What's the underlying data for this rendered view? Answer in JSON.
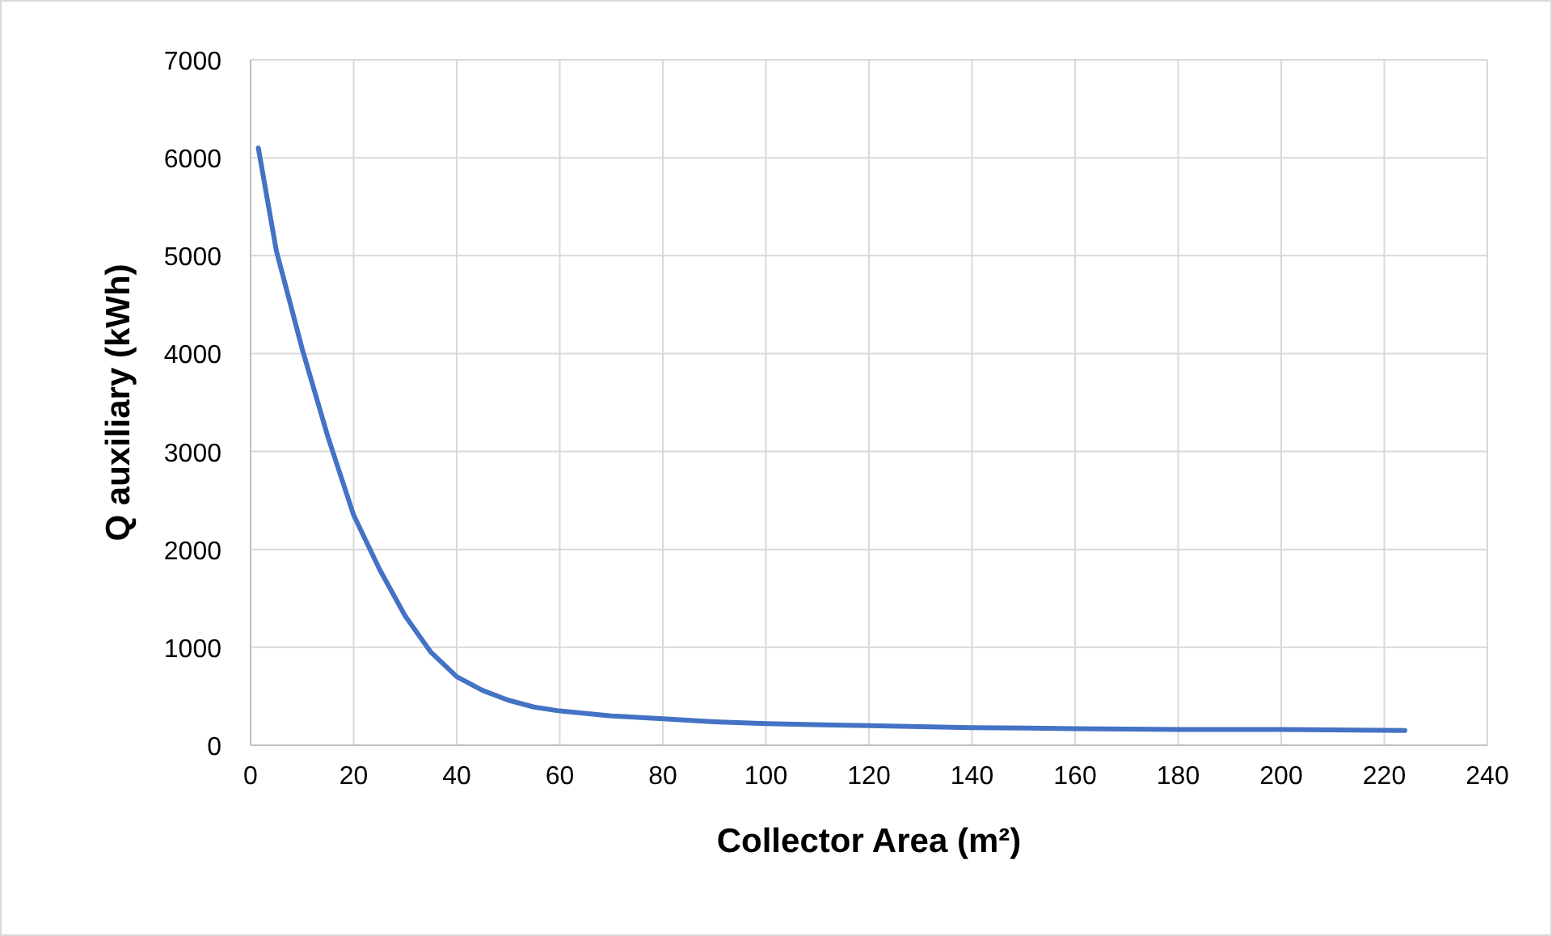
{
  "chart_data": {
    "type": "line",
    "xlabel": "Collector Area (m²)",
    "ylabel": "Q auxiliary (kWh)",
    "series": [
      {
        "color": "#4472c4",
        "x": [
          1.5,
          5,
          10,
          15,
          20,
          25,
          30,
          35,
          40,
          45,
          50,
          55,
          60,
          70,
          80,
          90,
          100,
          120,
          140,
          160,
          180,
          200,
          224
        ],
        "values": [
          6100,
          5050,
          4050,
          3150,
          2350,
          1800,
          1320,
          950,
          700,
          560,
          460,
          390,
          350,
          300,
          270,
          240,
          220,
          200,
          180,
          170,
          160,
          160,
          150
        ]
      }
    ],
    "xlim": [
      0,
      240
    ],
    "xticks": [
      0,
      20,
      40,
      60,
      80,
      100,
      120,
      140,
      160,
      180,
      200,
      220,
      240
    ],
    "ylim": [
      0,
      7000
    ],
    "yticks": [
      0,
      1000,
      2000,
      3000,
      4000,
      5000,
      6000,
      7000
    ],
    "grid": true,
    "marker": "none",
    "line_style": "solid"
  }
}
